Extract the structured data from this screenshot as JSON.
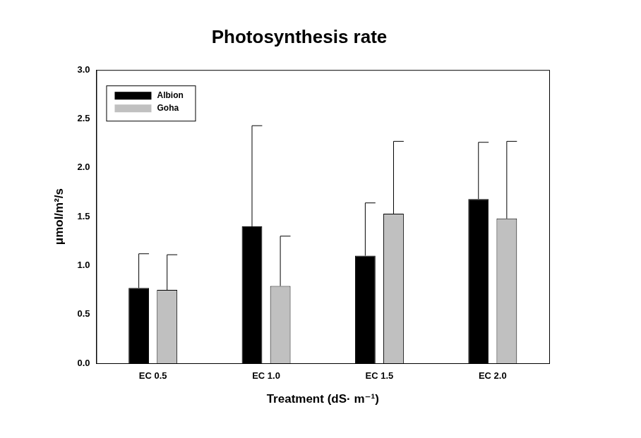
{
  "chart_data": {
    "type": "bar",
    "title": "Photosynthesis rate",
    "x_label": "Treatment (dS· m⁻¹)",
    "y_label": "μmol/m²/s",
    "categories": [
      "EC 0.5",
      "EC 1.0",
      "EC 1.5",
      "EC 2.0"
    ],
    "series": [
      {
        "name": "Albion",
        "color": "#000000",
        "values": [
          0.77,
          1.4,
          1.1,
          1.68
        ],
        "errors": [
          0.35,
          1.03,
          0.54,
          0.58
        ]
      },
      {
        "name": "Goha",
        "color": "#c0c0c0",
        "values": [
          0.75,
          0.79,
          1.53,
          1.48
        ],
        "errors": [
          0.36,
          0.51,
          0.74,
          0.79
        ]
      }
    ],
    "ylim": [
      0,
      3
    ],
    "yticks": [
      {
        "value": 0,
        "label": "0.0"
      },
      {
        "value": 0.5,
        "label": "0.5"
      },
      {
        "value": 1,
        "label": "1.0"
      },
      {
        "value": 1.5,
        "label": "1.5"
      },
      {
        "value": 2,
        "label": "2.0"
      },
      {
        "value": 2.5,
        "label": "2.5"
      },
      {
        "value": 3,
        "label": "3.0"
      }
    ],
    "grid": false,
    "legend": "top-left"
  }
}
